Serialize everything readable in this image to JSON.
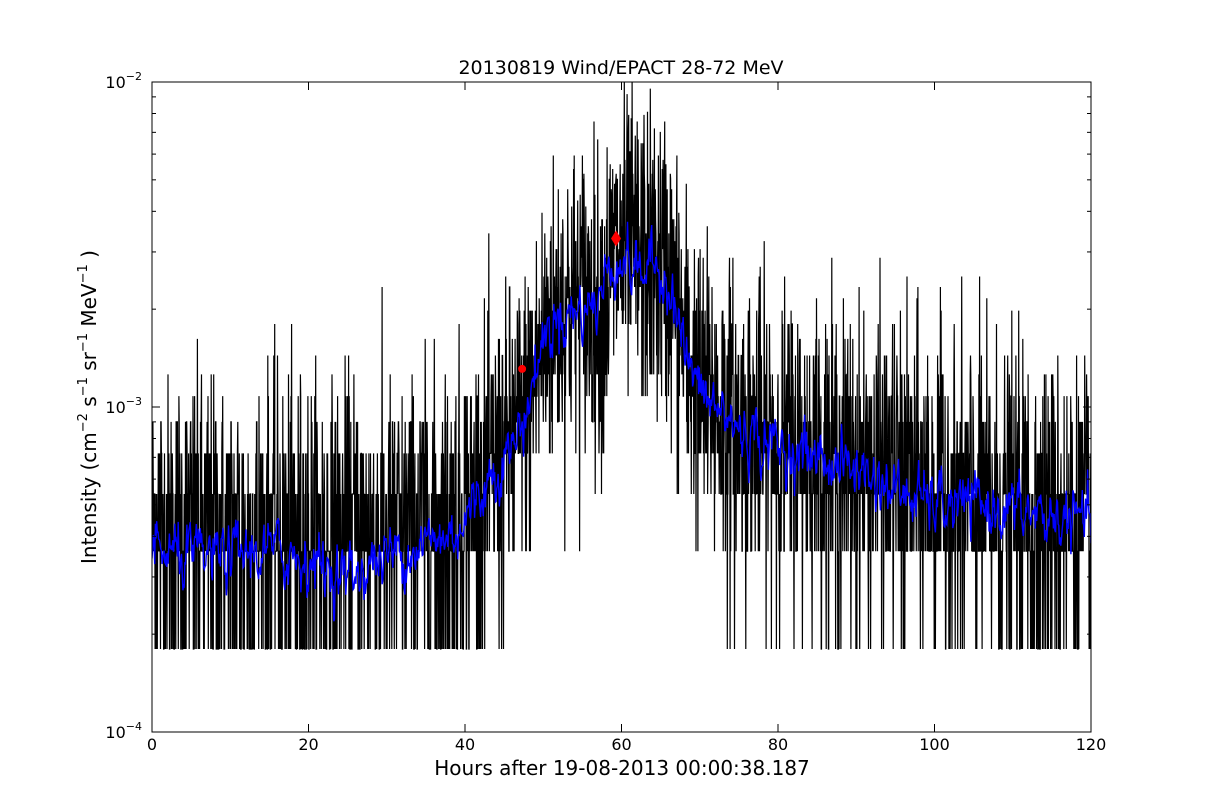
{
  "chart_data": {
    "type": "line",
    "title": "20130819 Wind/EPACT 28-72 MeV",
    "xlabel": "Hours after 19-08-2013 00:00:38.187",
    "ylabel": "Intensity (cm⁻² s⁻¹ sr⁻¹ MeV⁻¹)",
    "ylabel_parts": [
      "Intensity (cm",
      "−2",
      "s",
      "−1",
      "sr",
      "−1",
      "MeV",
      "−1",
      ")"
    ],
    "xlim": [
      0,
      120
    ],
    "ylim": [
      0.0001,
      0.01
    ],
    "y_scale": "log",
    "grid": false,
    "x_ticks": [
      0,
      20,
      40,
      60,
      80,
      100,
      120
    ],
    "x_tick_labels": [
      "0",
      "20",
      "40",
      "60",
      "80",
      "100",
      "120"
    ],
    "y_ticks": [
      0.0001,
      0.001,
      0.01
    ],
    "y_tick_labels": [
      {
        "base": "10",
        "exp": "−4"
      },
      {
        "base": "10",
        "exp": "−3"
      },
      {
        "base": "10",
        "exp": "−2"
      }
    ],
    "colors": {
      "raw": "#000000",
      "smoothed": "#0000ff",
      "markers": "#ff0000"
    },
    "raw_series": {
      "color": "#000000",
      "noise_floor": 0.00018,
      "profile_x": [
        0,
        10,
        20,
        30,
        38,
        42,
        45,
        47,
        48,
        50,
        52,
        55,
        57,
        58,
        59,
        60,
        62,
        65,
        66,
        67,
        68,
        69,
        70,
        72,
        75,
        80,
        85,
        90,
        100,
        110,
        120
      ],
      "profile_y": [
        0.00042,
        0.0004,
        0.0004,
        0.0004,
        0.00045,
        0.00055,
        0.0007,
        0.00085,
        0.00095,
        0.0016,
        0.002,
        0.0022,
        0.002,
        0.0022,
        0.0028,
        0.003,
        0.0029,
        0.0027,
        0.0025,
        0.002,
        0.0016,
        0.0013,
        0.0011,
        0.001,
        0.00085,
        0.00075,
        0.0007,
        0.00065,
        0.00055,
        0.00048,
        0.00045
      ]
    },
    "smoothed_series": {
      "color": "#0000ff",
      "profile_x": [
        0,
        5,
        10,
        15,
        20,
        25,
        30,
        35,
        38,
        40,
        42,
        44,
        46,
        47,
        48,
        49,
        50,
        52,
        55,
        57,
        58,
        59,
        60,
        62,
        64,
        66,
        67,
        68,
        69,
        70,
        72,
        75,
        80,
        85,
        90,
        95,
        100,
        105,
        110,
        115,
        120
      ],
      "profile_y": [
        0.00036,
        0.00034,
        0.00035,
        0.00036,
        0.00034,
        0.0003,
        0.00035,
        0.00038,
        0.0004,
        0.00045,
        0.00055,
        0.00065,
        0.00075,
        0.00085,
        0.001,
        0.0013,
        0.0016,
        0.0019,
        0.002,
        0.0021,
        0.0025,
        0.0028,
        0.0029,
        0.0026,
        0.0027,
        0.0025,
        0.002,
        0.0015,
        0.0013,
        0.0011,
        0.001,
        0.00085,
        0.00075,
        0.0007,
        0.00065,
        0.00055,
        0.0005,
        0.0005,
        0.00048,
        0.00045,
        0.00045
      ]
    },
    "markers": [
      {
        "x": 47.3,
        "y": 0.00131,
        "shape": "dot",
        "color": "#ff0000"
      },
      {
        "x": 59.3,
        "y": 0.0033,
        "shape": "diamond",
        "color": "#ff0000"
      }
    ]
  }
}
